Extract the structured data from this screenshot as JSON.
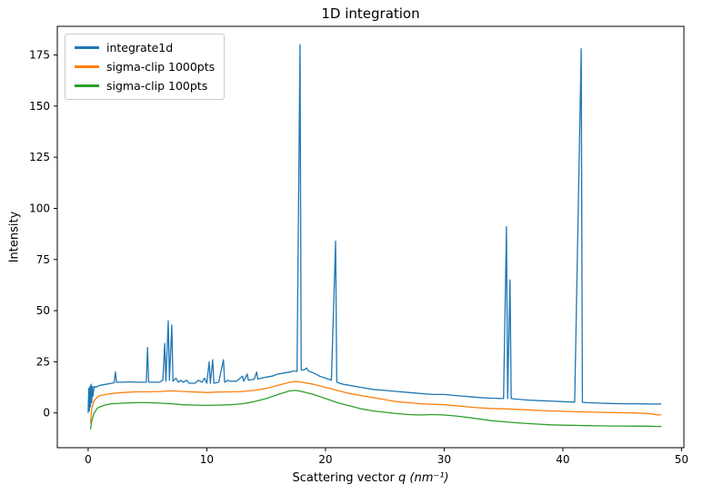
{
  "figure": {
    "title": "1D integration",
    "xlabel_prefix": "Scattering vector ",
    "xlabel_math": "q (nm⁻¹)",
    "ylabel": "Intensity"
  },
  "chart_data": {
    "type": "line",
    "title": "1D integration",
    "xlabel": "Scattering vector q (nm⁻¹)",
    "ylabel": "Intensity",
    "xlim": [
      -2.6,
      50.2
    ],
    "ylim": [
      -17,
      189
    ],
    "xticks": [
      0,
      10,
      20,
      30,
      40,
      50
    ],
    "yticks": [
      0,
      25,
      50,
      75,
      100,
      125,
      150,
      175
    ],
    "grid": false,
    "legend_position": "upper left",
    "series": [
      {
        "name": "integrate1d",
        "color": "#1f77b4",
        "points": [
          [
            0.0,
            0
          ],
          [
            0.05,
            12
          ],
          [
            0.1,
            1
          ],
          [
            0.15,
            13
          ],
          [
            0.2,
            3
          ],
          [
            0.25,
            14
          ],
          [
            0.3,
            5
          ],
          [
            0.35,
            13
          ],
          [
            0.4,
            8
          ],
          [
            0.5,
            13
          ],
          [
            0.6,
            12.5
          ],
          [
            0.8,
            13
          ],
          [
            1,
            13.5
          ],
          [
            1.5,
            14
          ],
          [
            2,
            14.5
          ],
          [
            2.2,
            14.8
          ],
          [
            2.3,
            20
          ],
          [
            2.4,
            15
          ],
          [
            3,
            15
          ],
          [
            3.5,
            15.2
          ],
          [
            4,
            15
          ],
          [
            4.5,
            15
          ],
          [
            4.9,
            15
          ],
          [
            5,
            32
          ],
          [
            5.1,
            15
          ],
          [
            5.5,
            15
          ],
          [
            6,
            15
          ],
          [
            6.3,
            16
          ],
          [
            6.45,
            34
          ],
          [
            6.55,
            15.5
          ],
          [
            6.75,
            45
          ],
          [
            6.85,
            16
          ],
          [
            7.05,
            43
          ],
          [
            7.15,
            15.5
          ],
          [
            7.4,
            17
          ],
          [
            7.6,
            15
          ],
          [
            7.8,
            16
          ],
          [
            8,
            15
          ],
          [
            8.3,
            16
          ],
          [
            8.5,
            14.5
          ],
          [
            9,
            14.5
          ],
          [
            9.3,
            16
          ],
          [
            9.6,
            15
          ],
          [
            9.8,
            17
          ],
          [
            10,
            14.5
          ],
          [
            10.2,
            25
          ],
          [
            10.3,
            14.5
          ],
          [
            10.5,
            26
          ],
          [
            10.6,
            14.5
          ],
          [
            11,
            15
          ],
          [
            11.4,
            26
          ],
          [
            11.5,
            15
          ],
          [
            11.8,
            16
          ],
          [
            12,
            15.5
          ],
          [
            12.5,
            15.5
          ],
          [
            13,
            18
          ],
          [
            13.1,
            15.5
          ],
          [
            13.4,
            19
          ],
          [
            13.5,
            16
          ],
          [
            14,
            16.5
          ],
          [
            14.2,
            20
          ],
          [
            14.3,
            16.5
          ],
          [
            14.6,
            17
          ],
          [
            15,
            17.5
          ],
          [
            15.5,
            18
          ],
          [
            16,
            19
          ],
          [
            16.5,
            19.5
          ],
          [
            17,
            20
          ],
          [
            17.3,
            20.5
          ],
          [
            17.6,
            20.3
          ],
          [
            17.85,
            180
          ],
          [
            17.95,
            21
          ],
          [
            18.2,
            21
          ],
          [
            18.4,
            22
          ],
          [
            18.55,
            20.5
          ],
          [
            18.8,
            20
          ],
          [
            19,
            19.5
          ],
          [
            19.5,
            18
          ],
          [
            20,
            17
          ],
          [
            20.5,
            16
          ],
          [
            20.85,
            84
          ],
          [
            20.95,
            15
          ],
          [
            21.5,
            14
          ],
          [
            22,
            13.5
          ],
          [
            23,
            12.5
          ],
          [
            24,
            11.5
          ],
          [
            25,
            11
          ],
          [
            26,
            10.5
          ],
          [
            27,
            10
          ],
          [
            28,
            9.5
          ],
          [
            29,
            9
          ],
          [
            30,
            9
          ],
          [
            31,
            8.5
          ],
          [
            32,
            8
          ],
          [
            33,
            7.5
          ],
          [
            34,
            7.2
          ],
          [
            35,
            7
          ],
          [
            35.25,
            91
          ],
          [
            35.35,
            7
          ],
          [
            35.55,
            65
          ],
          [
            35.65,
            7
          ],
          [
            36,
            6.8
          ],
          [
            37,
            6.3
          ],
          [
            38,
            6
          ],
          [
            39,
            5.8
          ],
          [
            40,
            5.5
          ],
          [
            41,
            5.3
          ],
          [
            41.55,
            178
          ],
          [
            41.65,
            5.2
          ],
          [
            42,
            5
          ],
          [
            43,
            4.8
          ],
          [
            44,
            4.6
          ],
          [
            45,
            4.5
          ],
          [
            46,
            4.5
          ],
          [
            47,
            4.4
          ],
          [
            48,
            4.3
          ],
          [
            48.3,
            4.5
          ]
        ]
      },
      {
        "name": "sigma-clip 1000pts",
        "color": "#ff7f0e",
        "points": [
          [
            0.2,
            -5
          ],
          [
            0.3,
            2
          ],
          [
            0.5,
            6
          ],
          [
            0.8,
            8
          ],
          [
            1,
            8.5
          ],
          [
            1.5,
            9
          ],
          [
            2,
            9.5
          ],
          [
            3,
            10
          ],
          [
            4,
            10.3
          ],
          [
            5,
            10.3
          ],
          [
            6,
            10.5
          ],
          [
            7,
            10.8
          ],
          [
            8,
            10.5
          ],
          [
            9,
            10.2
          ],
          [
            10,
            10
          ],
          [
            11,
            10.2
          ],
          [
            12,
            10.3
          ],
          [
            13,
            10.5
          ],
          [
            14,
            11
          ],
          [
            15,
            12
          ],
          [
            16,
            13.5
          ],
          [
            17,
            15
          ],
          [
            17.5,
            15.3
          ],
          [
            18,
            15
          ],
          [
            19,
            14
          ],
          [
            20,
            12.5
          ],
          [
            21,
            11
          ],
          [
            22,
            9.5
          ],
          [
            23,
            8.5
          ],
          [
            24,
            7.5
          ],
          [
            25,
            6.5
          ],
          [
            26,
            5.5
          ],
          [
            27,
            5
          ],
          [
            28,
            4.5
          ],
          [
            29,
            4.2
          ],
          [
            30,
            4
          ],
          [
            31,
            3.5
          ],
          [
            32,
            3
          ],
          [
            33,
            2.5
          ],
          [
            34,
            2.2
          ],
          [
            35,
            2
          ],
          [
            36,
            1.8
          ],
          [
            37,
            1.5
          ],
          [
            38,
            1.2
          ],
          [
            39,
            1
          ],
          [
            40,
            0.8
          ],
          [
            41,
            0.6
          ],
          [
            42,
            0.5
          ],
          [
            43,
            0.3
          ],
          [
            44,
            0.2
          ],
          [
            45,
            0.1
          ],
          [
            46,
            0
          ],
          [
            47,
            -0.2
          ],
          [
            47.5,
            -0.5
          ],
          [
            48,
            -1
          ],
          [
            48.3,
            -0.8
          ]
        ]
      },
      {
        "name": "sigma-clip 100pts",
        "color": "#2ca02c",
        "points": [
          [
            0.2,
            -8
          ],
          [
            0.3,
            -4
          ],
          [
            0.5,
            0
          ],
          [
            0.8,
            2.5
          ],
          [
            1,
            3
          ],
          [
            1.5,
            4
          ],
          [
            2,
            4.5
          ],
          [
            3,
            4.8
          ],
          [
            4,
            5
          ],
          [
            5,
            5
          ],
          [
            6,
            4.8
          ],
          [
            7,
            4.5
          ],
          [
            8,
            4
          ],
          [
            9,
            3.8
          ],
          [
            10,
            3.7
          ],
          [
            11,
            3.8
          ],
          [
            12,
            4
          ],
          [
            13,
            4.5
          ],
          [
            14,
            5.5
          ],
          [
            15,
            7
          ],
          [
            16,
            9
          ],
          [
            17,
            10.8
          ],
          [
            17.5,
            11
          ],
          [
            18,
            10.5
          ],
          [
            19,
            9
          ],
          [
            20,
            7
          ],
          [
            21,
            5
          ],
          [
            22,
            3.5
          ],
          [
            23,
            2
          ],
          [
            24,
            1
          ],
          [
            25,
            0.3
          ],
          [
            26,
            -0.3
          ],
          [
            27,
            -0.8
          ],
          [
            28,
            -1
          ],
          [
            29,
            -0.8
          ],
          [
            30,
            -1
          ],
          [
            31,
            -1.5
          ],
          [
            32,
            -2.2
          ],
          [
            33,
            -3
          ],
          [
            34,
            -3.8
          ],
          [
            35,
            -4.3
          ],
          [
            36,
            -4.8
          ],
          [
            37,
            -5.2
          ],
          [
            38,
            -5.5
          ],
          [
            39,
            -5.8
          ],
          [
            40,
            -6
          ],
          [
            41,
            -6.1
          ],
          [
            42,
            -6.2
          ],
          [
            43,
            -6.3
          ],
          [
            44,
            -6.4
          ],
          [
            45,
            -6.4
          ],
          [
            46,
            -6.5
          ],
          [
            47,
            -6.5
          ],
          [
            48,
            -6.6
          ],
          [
            48.3,
            -6.6
          ]
        ]
      }
    ]
  }
}
